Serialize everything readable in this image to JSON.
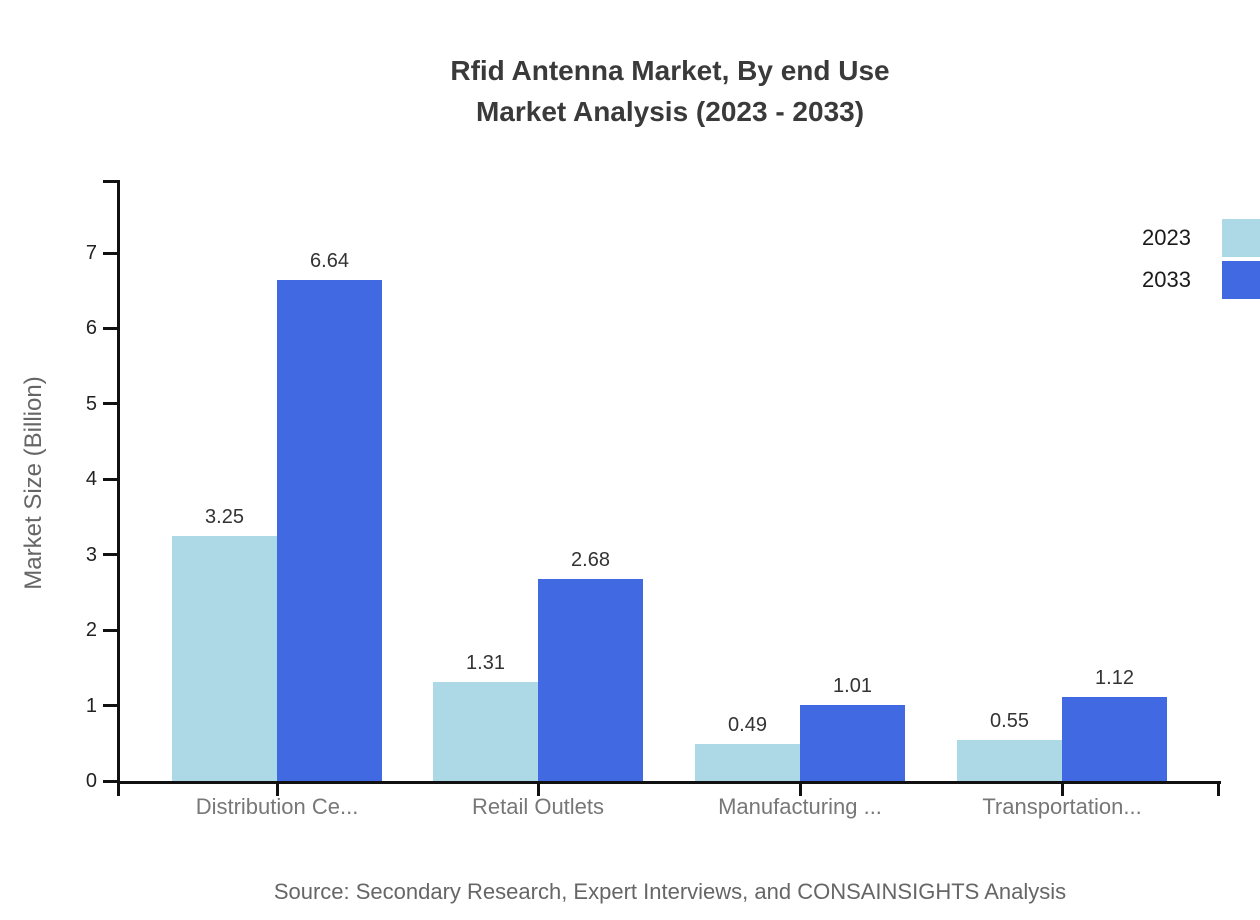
{
  "title": {
    "line1": "Rfid Antenna Market, By end Use",
    "line2": "Market Analysis (2023 - 2033)"
  },
  "y_axis_label": "Market Size (Billion)",
  "source_note": "Source: Secondary Research, Expert Interviews, and CONSAINSIGHTS Analysis",
  "legend": {
    "items": [
      "2023",
      "2033"
    ],
    "position": "top-right"
  },
  "colors": {
    "series_2023": "#ADD8E6",
    "series_2033": "#4169E1",
    "axis": "#111111",
    "title_text": "#3a3a3a",
    "value_text": "#333333",
    "category_text": "#777777",
    "muted_text": "#666666"
  },
  "chart_data": {
    "type": "bar",
    "title": "Rfid Antenna Market, By end Use Market Analysis (2023 - 2033)",
    "categories": [
      "Distribution Ce...",
      "Retail Outlets",
      "Manufacturing ...",
      "Transportation..."
    ],
    "series": [
      {
        "name": "2023",
        "color": "#ADD8E6",
        "values": [
          3.25,
          1.31,
          0.49,
          0.55
        ]
      },
      {
        "name": "2033",
        "color": "#4169E1",
        "values": [
          6.64,
          2.68,
          1.01,
          1.12
        ]
      }
    ],
    "xlabel": "",
    "ylabel": "Market Size (Billion)",
    "ylim": [
      0,
      8
    ],
    "yticks": [
      0,
      1,
      2,
      3,
      4,
      5,
      6,
      7
    ],
    "grid": false,
    "legend_position": "top-right",
    "value_labels": true,
    "value_label_decimals": 2
  }
}
